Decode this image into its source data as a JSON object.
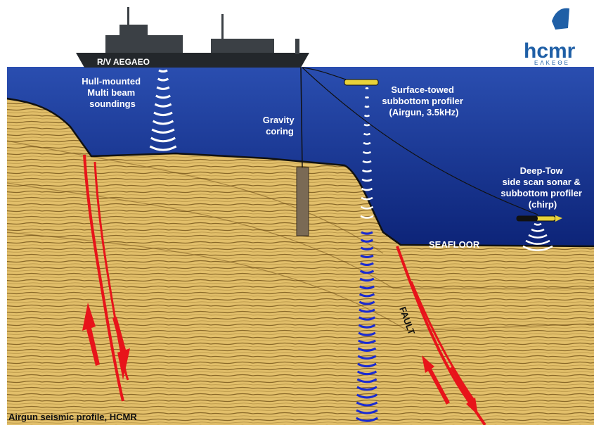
{
  "ship": {
    "name": "R/V AEGAEO"
  },
  "logo": {
    "text": "hcmr",
    "subtitle": "ΕΛΚΕΘΕ"
  },
  "labels": {
    "multibeam": [
      "Hull-mounted",
      "Multi beam",
      "soundings"
    ],
    "gravity": [
      "Gravity",
      "coring"
    ],
    "surface_towed": [
      "Surface-towed",
      "subbottom profiler",
      "(Airgun, 3.5kHz)"
    ],
    "deep_tow": [
      "Deep-Tow",
      "side scan sonar &",
      "subbottom profiler",
      "(chirp)"
    ],
    "seafloor": "SEAFLOOR",
    "fault": "FAULT",
    "caption": "Airgun seismic profile, HCMR"
  },
  "colors": {
    "water_top": "#1f3c9a",
    "water_bottom": "#0a1e6e",
    "sediment": "#e3c06a",
    "fault": "#e8141a",
    "pulse_white": "#ffffff",
    "pulse_blue": "#1b2bd0",
    "label_blue": "#0b1f7a",
    "sky_logo": "#1f5fa6"
  }
}
